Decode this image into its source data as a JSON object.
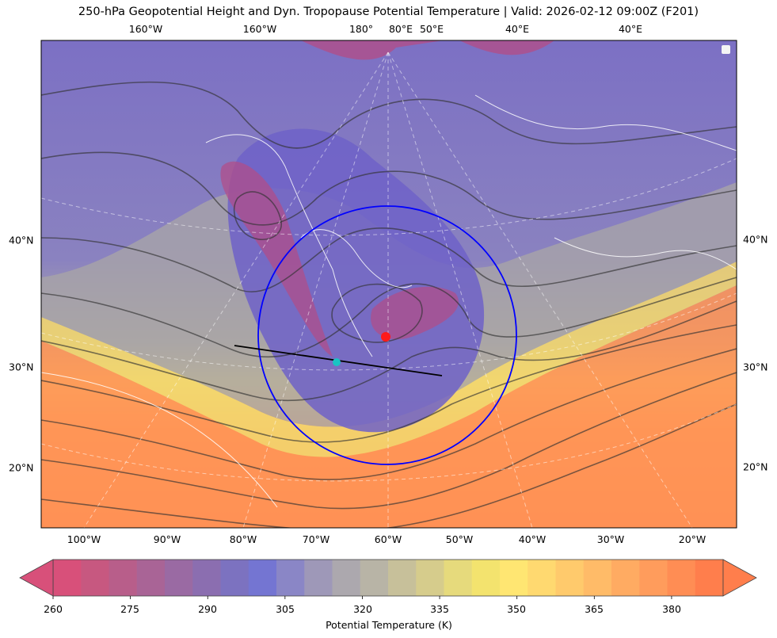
{
  "title": "250-hPa Geopotential Height and Dyn. Tropopause Potential Temperature   |  Valid: 2026-02-12 09:00Z (F201)",
  "top_longitude_labels": [
    "160°W",
    "160°W",
    "180°",
    "80°E",
    "50°E",
    "40°E",
    "40°E"
  ],
  "bottom_longitude_labels": [
    "100°W",
    "90°W",
    "80°W",
    "70°W",
    "60°W",
    "50°W",
    "40°W",
    "30°W",
    "20°W"
  ],
  "left_latitude_labels": [
    "40°N",
    "30°N",
    "20°N"
  ],
  "right_latitude_labels": [
    "40°N",
    "30°N",
    "20°N"
  ],
  "colorbar": {
    "label": "Potential Temperature (K)",
    "ticks": [
      "260",
      "275",
      "290",
      "305",
      "320",
      "335",
      "350",
      "365",
      "380"
    ],
    "min": 260,
    "max": 390,
    "step": 5,
    "extend": "both",
    "colors": [
      "#d8507a",
      "#c75880",
      "#b85e8a",
      "#a96496",
      "#9a6aa3",
      "#8b6eb0",
      "#7c72c0",
      "#7475d2",
      "#8a86c6",
      "#9e98b8",
      "#aca8ae",
      "#b8b4a6",
      "#c7c09a",
      "#d6cc8c",
      "#e6da7c",
      "#f3e36e",
      "#ffe672",
      "#ffd970",
      "#ffca6c",
      "#ffbb68",
      "#ffab62",
      "#ff9c5c",
      "#ff8d54",
      "#ff7e4c"
    ]
  },
  "markers": {
    "circle_color": "#0000ff",
    "red_point_color": "#ff1a1a",
    "cyan_point_color": "#19c3c3",
    "cross_section_color": "#000000"
  }
}
